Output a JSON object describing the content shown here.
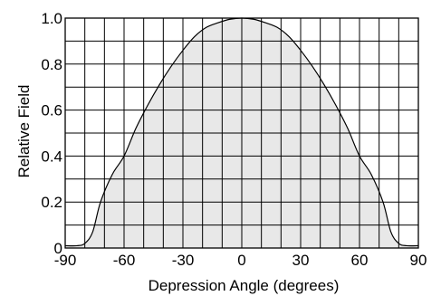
{
  "chart_data": {
    "type": "area",
    "title": "",
    "xlabel": "Depression Angle (degrees)",
    "ylabel": "Relative Field",
    "xlim": [
      -90,
      90
    ],
    "ylim": [
      0,
      1.0
    ],
    "grid": true,
    "x_ticks": [
      -90,
      -60,
      -30,
      0,
      30,
      60,
      90
    ],
    "y_ticks": [
      0,
      0.2,
      0.4,
      0.6,
      0.8,
      1.0
    ],
    "x_tick_labels": [
      "-90",
      "-60",
      "-30",
      "0",
      "30",
      "60",
      "90"
    ],
    "y_tick_labels": [
      "0",
      "0.2",
      "0.4",
      "0.6",
      "0.8",
      "1.0"
    ],
    "series": [
      {
        "x": [
          -90,
          -84,
          -80,
          -76,
          -72,
          -66,
          -60,
          -54,
          -48,
          -42,
          -36,
          -30,
          -24,
          -18,
          -12,
          -6,
          0,
          6,
          12,
          18,
          24,
          30,
          36,
          42,
          48,
          54,
          60,
          66,
          72,
          76,
          80,
          84,
          90
        ],
        "y": [
          0.01,
          0.01,
          0.02,
          0.07,
          0.2,
          0.32,
          0.4,
          0.52,
          0.62,
          0.71,
          0.79,
          0.86,
          0.92,
          0.96,
          0.98,
          0.995,
          1.0,
          0.995,
          0.98,
          0.96,
          0.92,
          0.86,
          0.79,
          0.71,
          0.62,
          0.52,
          0.4,
          0.32,
          0.2,
          0.07,
          0.02,
          0.01,
          0.01
        ]
      }
    ],
    "colors": {
      "fill": "#e8e8e8",
      "line": "#000000",
      "grid": "#000000"
    }
  }
}
